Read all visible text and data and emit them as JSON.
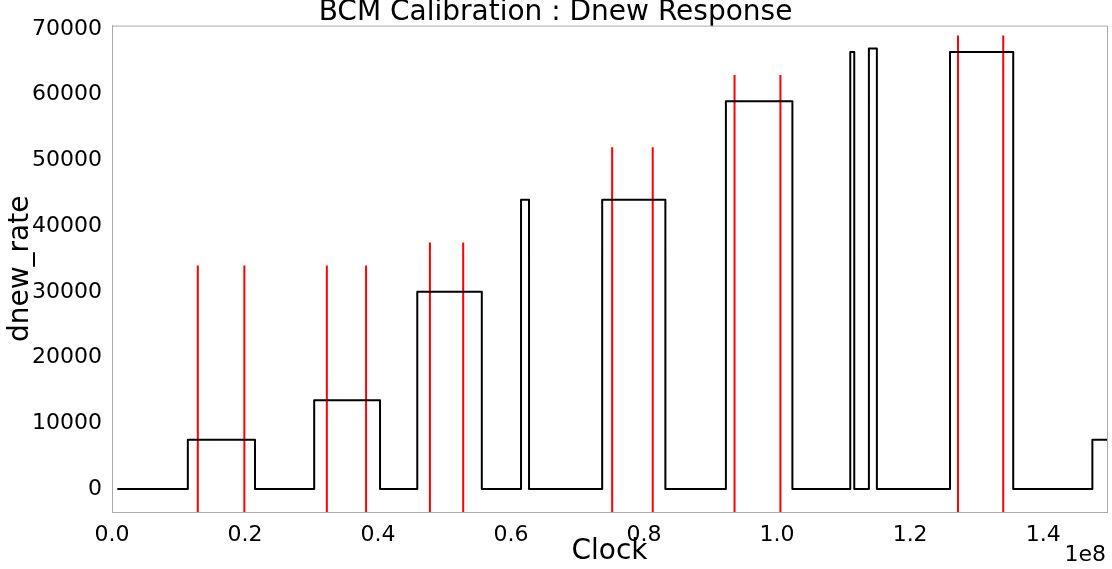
{
  "chart_data": {
    "type": "line",
    "title": "BCM Calibration : Dnew Response",
    "xlabel": "Clock",
    "ylabel": "dnew_rate",
    "annotations": [
      "1e8"
    ],
    "xlim": [
      0,
      1.496
    ],
    "ylim": [
      -3500,
      70500
    ],
    "xticks": [
      {
        "value": 0,
        "label": "0.0"
      },
      {
        "value": 0.2,
        "label": "0.2"
      },
      {
        "value": 0.4,
        "label": "0.4"
      },
      {
        "value": 0.6,
        "label": "0.6"
      },
      {
        "value": 0.8,
        "label": "0.8"
      },
      {
        "value": 1.0,
        "label": "1.0"
      },
      {
        "value": 1.2,
        "label": "1.2"
      },
      {
        "value": 1.4,
        "label": "1.4"
      }
    ],
    "yticks": [
      0,
      10000,
      20000,
      30000,
      40000,
      50000,
      60000,
      70000
    ],
    "grid": false,
    "legend": false,
    "marker": "none",
    "series": [
      {
        "color": "#000000",
        "x": [
          0.008,
          0.114,
          0.114,
          0.215,
          0.215,
          0.304,
          0.304,
          0.403,
          0.403,
          0.459,
          0.459,
          0.556,
          0.556,
          0.615,
          0.615,
          0.627,
          0.627,
          0.737,
          0.737,
          0.832,
          0.832,
          0.923,
          0.923,
          1.023,
          1.023,
          1.11,
          1.11,
          1.116,
          1.116,
          1.138,
          1.138,
          1.15,
          1.15,
          1.26,
          1.26,
          1.355,
          1.355,
          1.474,
          1.474,
          1.496
        ],
        "values": [
          0,
          0,
          7500,
          7500,
          0,
          0,
          13500,
          13500,
          0,
          0,
          30000,
          30000,
          0,
          0,
          44000,
          44000,
          0,
          0,
          44000,
          44000,
          0,
          0,
          59000,
          59000,
          0,
          0,
          66500,
          66500,
          0,
          0,
          67000,
          67000,
          0,
          0,
          66500,
          66500,
          0,
          0,
          7500,
          7500
        ]
      },
      {
        "color": "#ff0000",
        "x": [
          0.129,
          0.129
        ],
        "values": [
          -3500,
          34000
        ]
      },
      {
        "color": "#ff0000",
        "x": [
          0.199,
          0.199
        ],
        "values": [
          -3500,
          34000
        ]
      },
      {
        "color": "#ff0000",
        "x": [
          0.323,
          0.323
        ],
        "values": [
          -3500,
          34000
        ]
      },
      {
        "color": "#ff0000",
        "x": [
          0.382,
          0.382
        ],
        "values": [
          -3500,
          34000
        ]
      },
      {
        "color": "#ff0000",
        "x": [
          0.478,
          0.478
        ],
        "values": [
          -3500,
          37500
        ]
      },
      {
        "color": "#ff0000",
        "x": [
          0.528,
          0.528
        ],
        "values": [
          -3500,
          37500
        ]
      },
      {
        "color": "#ff0000",
        "x": [
          0.752,
          0.752
        ],
        "values": [
          -3500,
          52000
        ]
      },
      {
        "color": "#ff0000",
        "x": [
          0.813,
          0.813
        ],
        "values": [
          -3500,
          52000
        ]
      },
      {
        "color": "#ff0000",
        "x": [
          0.936,
          0.936
        ],
        "values": [
          -3500,
          63000
        ]
      },
      {
        "color": "#ff0000",
        "x": [
          1.005,
          1.005
        ],
        "values": [
          -3500,
          63000
        ]
      },
      {
        "color": "#ff0000",
        "x": [
          1.272,
          1.272
        ],
        "values": [
          -3500,
          69000
        ]
      },
      {
        "color": "#ff0000",
        "x": [
          1.34,
          1.34
        ],
        "values": [
          -3500,
          69000
        ]
      }
    ]
  }
}
